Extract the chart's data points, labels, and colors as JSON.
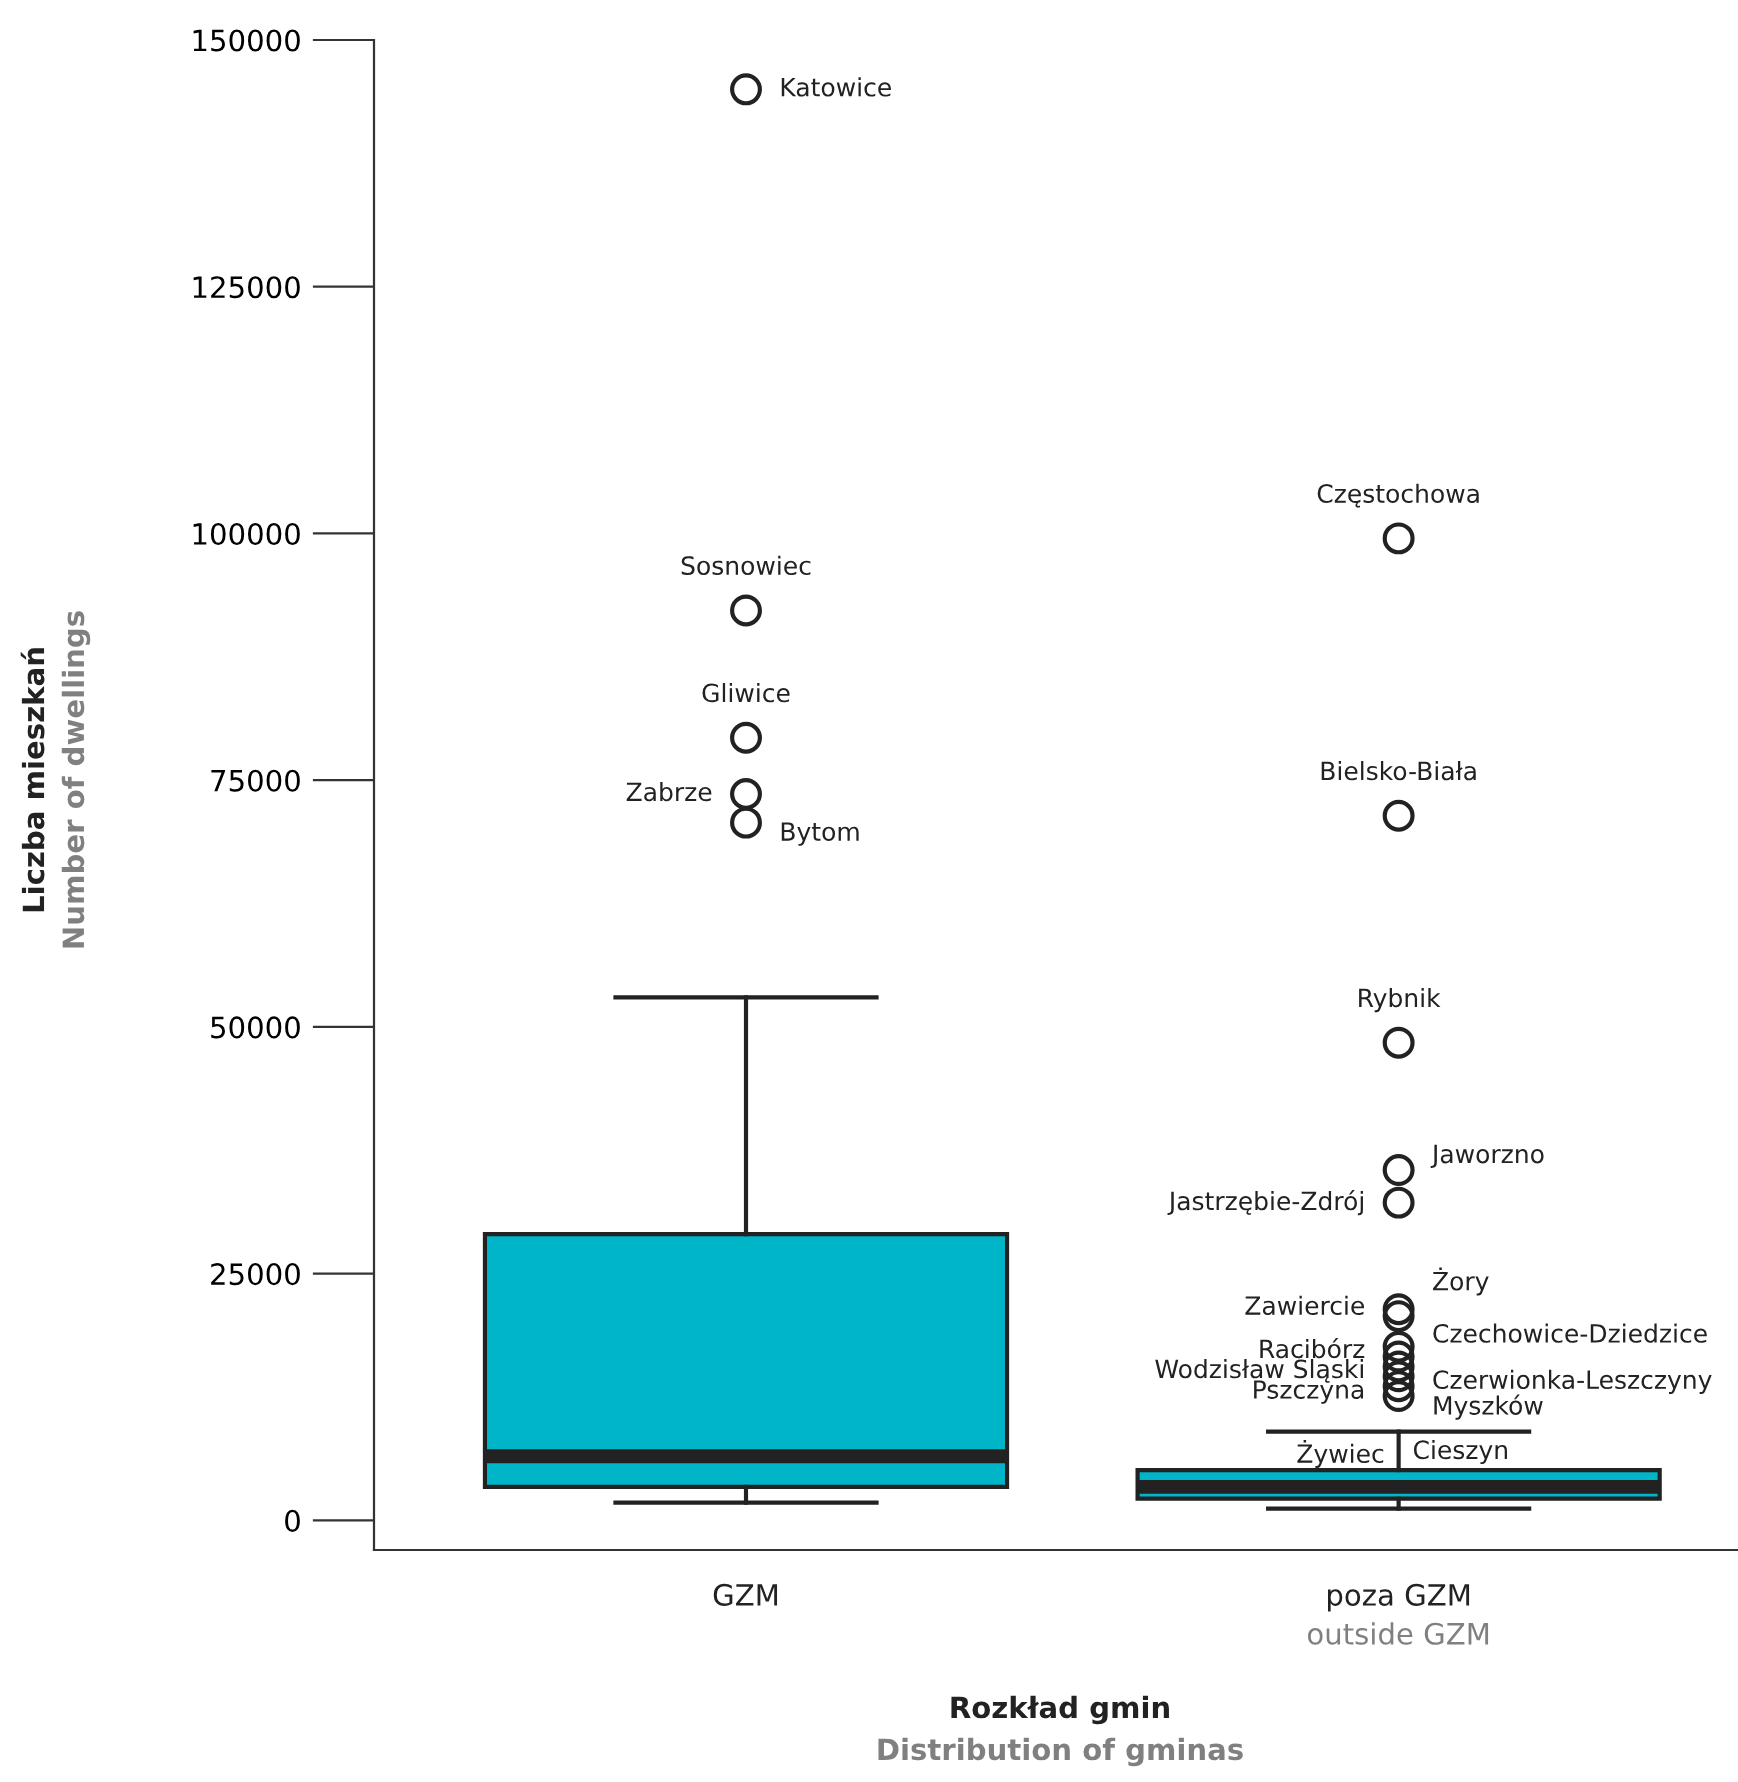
{
  "chart_data": {
    "type": "box",
    "categories": [
      "GZM",
      "poza GZM\noutside GZM"
    ],
    "xlabel": "Rozkład gmin\nDistribution of gminas",
    "ylabel": "Liczba mieszkań\nNumber of dwellings",
    "color": "#00b5c8",
    "boxes": [
      {
        "low": 1800,
        "q1": 3400,
        "median": 6500,
        "q3": 29000,
        "high": 53000,
        "outliers": [
          145000,
          92200,
          79300,
          73600,
          70700
        ]
      },
      {
        "low": 1200,
        "q1": 2200,
        "median": 3400,
        "q3": 5100,
        "high": 9000,
        "outliers": [
          99500,
          71400,
          48400,
          35500,
          32200,
          21400,
          20700,
          17600,
          16600,
          15600,
          14600,
          13600,
          12600
        ]
      }
    ],
    "ylim": [
      -3000,
      150000
    ],
    "yticks": [
      0,
      25000,
      50000,
      75000,
      100000,
      125000,
      150000
    ],
    "grid": false,
    "annotations": [
      "Katowice",
      "Sosnowiec",
      "Gliwice",
      "Zabrze",
      "Bytom",
      "Częstochowa",
      "Bielsko-Biała",
      "Rybnik",
      "Jaworzno",
      "Jastrzębie-Zdrój",
      "Żory",
      "Zawiercie",
      "Czechowice-Dziedzice",
      "Racibórz",
      "Wodzisław Śląski",
      "Czerwionka-Leszczyny",
      "Pszczyna",
      "Myszków",
      "Żywiec",
      "Cieszyn"
    ]
  }
}
